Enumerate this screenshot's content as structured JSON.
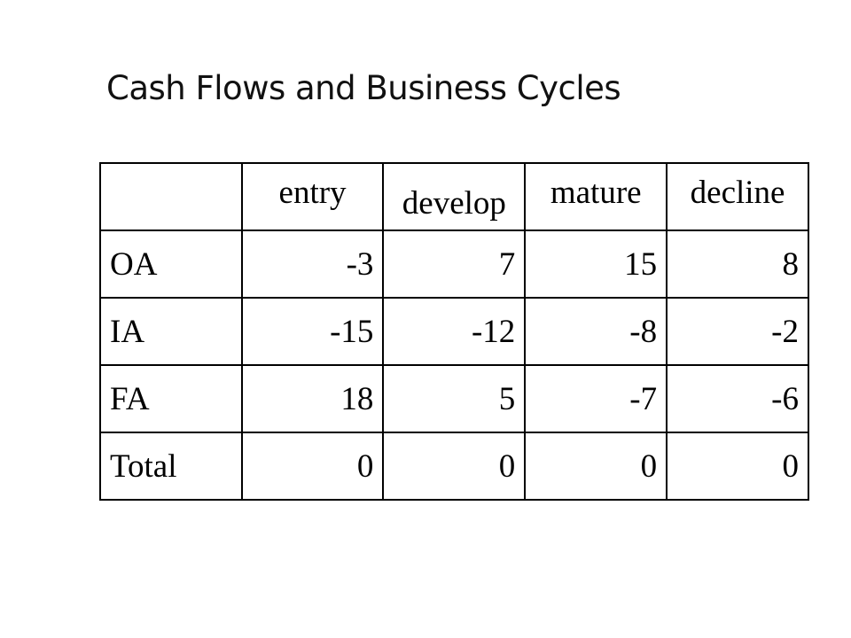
{
  "title": "Cash Flows and Business Cycles",
  "table": {
    "corner": "",
    "columns": [
      "entry",
      "develop",
      "mature",
      "decline"
    ],
    "rows": [
      {
        "label": "OA",
        "values": [
          "-3",
          "7",
          "15",
          "8"
        ]
      },
      {
        "label": "IA",
        "values": [
          "-15",
          "-12",
          "-8",
          "-2"
        ]
      },
      {
        "label": "FA",
        "values": [
          "18",
          "5",
          "-7",
          "-6"
        ]
      },
      {
        "label": "Total",
        "values": [
          "0",
          "0",
          "0",
          "0"
        ]
      }
    ]
  }
}
